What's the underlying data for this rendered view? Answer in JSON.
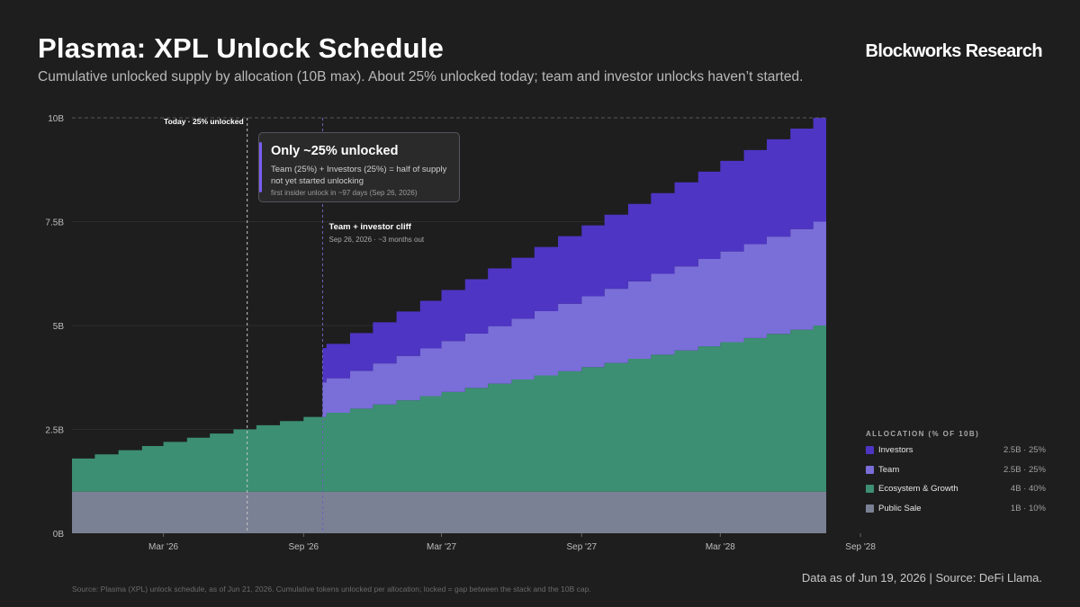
{
  "header": {
    "title": "Plasma: XPL Unlock Schedule",
    "subtitle": "Cumulative unlocked supply by allocation (10B max). About 25% unlocked today; team and investor unlocks haven’t started.",
    "brand": "Blockworks Research"
  },
  "callout": {
    "title": "Only ~25% unlocked",
    "body": "Team (25%) + Investors (25%) = half of supply not yet started unlocking",
    "note": "first insider unlock in ~97 days (Sep 26, 2026)"
  },
  "legend": {
    "title": "ALLOCATION (% OF 10B)",
    "items": [
      {
        "label": "Investors",
        "value": "2.5B · 25%",
        "color": "#4e35c4"
      },
      {
        "label": "Team",
        "value": "2.5B · 25%",
        "color": "#7a6ed9"
      },
      {
        "label": "Ecosystem & Growth",
        "value": "4B · 40%",
        "color": "#3c8f72"
      },
      {
        "label": "Public Sale",
        "value": "1B · 10%",
        "color": "#7b8194"
      }
    ]
  },
  "footer": {
    "asof": "Data as of Jun 19, 2026 | Source: DeFi Llama.",
    "note": "Source: Plasma (XPL) unlock schedule, as of Jun 21, 2026. Cumulative tokens unlocked per allocation; locked = gap between the stack and the 10B cap."
  },
  "chart_data": {
    "type": "area",
    "stacked": true,
    "x_start": "Nov 2025",
    "x_end": "Jul 2028",
    "ylim": [
      0,
      10
    ],
    "y_ticks": [
      0,
      2.5,
      5,
      7.5,
      10
    ],
    "y_tick_labels": [
      "0B",
      "2.5B",
      "5B",
      "7.5B",
      "10B"
    ],
    "x_ticks": [
      {
        "date": "2026-03",
        "label": "Mar '26"
      },
      {
        "date": "2026-09",
        "label": "Sep '26"
      },
      {
        "date": "2027-03",
        "label": "Mar '27"
      },
      {
        "date": "2027-09",
        "label": "Sep '27"
      },
      {
        "date": "2028-03",
        "label": "Mar '28"
      },
      {
        "date": "2028-09",
        "label": "Sep '28"
      }
    ],
    "series": [
      {
        "name": "Public Sale",
        "color": "#7b8194",
        "schedule": "constant 1B (fully unlocked)"
      },
      {
        "name": "Ecosystem & Growth",
        "color": "#3c8f72",
        "start": 0.8,
        "end": 4.0,
        "unlock": "monthly steps from 0.8B to 4B"
      },
      {
        "name": "Team",
        "color": "#7a6ed9",
        "cliff_date": "2026-09-26",
        "cliff_amount": 0.83,
        "end": 2.5,
        "unlock": "cliff then monthly steps to 2.5B"
      },
      {
        "name": "Investors",
        "color": "#4e35c4",
        "cliff_date": "2026-09-26",
        "cliff_amount": 0.83,
        "end": 2.5,
        "unlock": "cliff then monthly steps to 2.5B"
      }
    ],
    "annotations": [
      {
        "type": "vline",
        "date": "2026-06-19",
        "label": "Today · 25% unlocked"
      },
      {
        "type": "vline",
        "date": "2026-09-26",
        "label": "Team + investor cliff",
        "sublabel": "Sep 26, 2026 · ~3 months out"
      },
      {
        "type": "hline",
        "y": 10,
        "style": "dashed"
      }
    ]
  }
}
